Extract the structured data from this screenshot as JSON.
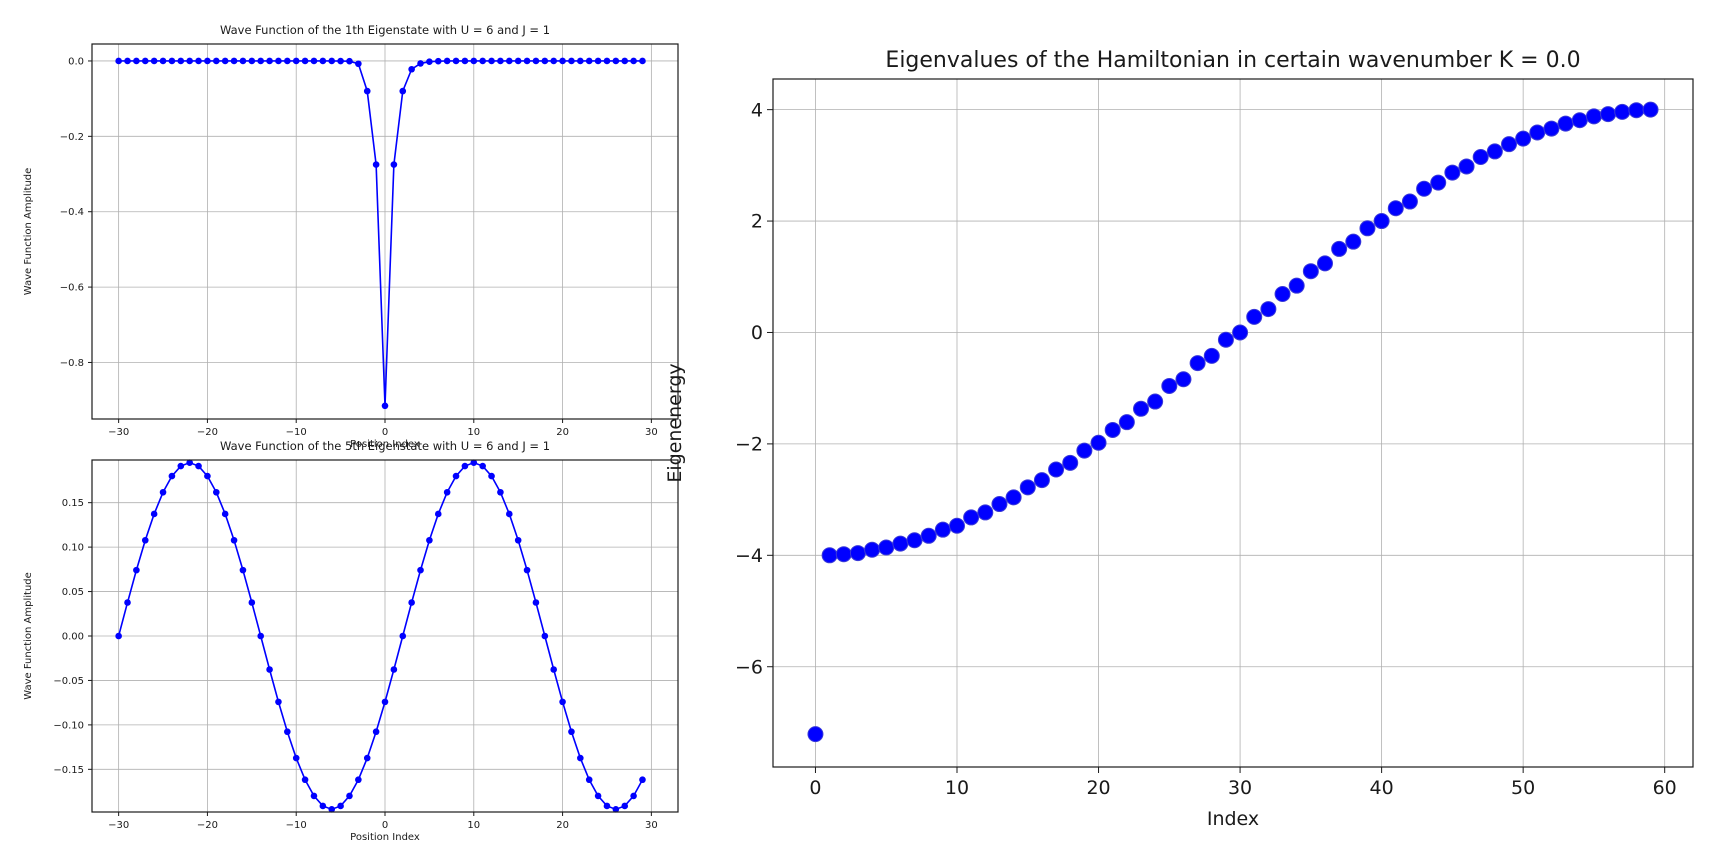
{
  "chart_data": [
    {
      "type": "line",
      "title": "Wave Function of the 1th Eigenstate with U = 6 and J = 1",
      "xlabel": "Position Index",
      "ylabel": "Wave Function Amplitude",
      "xlim": [
        -33,
        33
      ],
      "ylim": [
        -0.95,
        0.045
      ],
      "xticks": [
        -30,
        -20,
        -10,
        0,
        10,
        20,
        30
      ],
      "yticks": [
        0.0,
        -0.2,
        -0.4,
        -0.6,
        -0.8
      ],
      "ytick_labels": [
        "0.0",
        "−0.2",
        "−0.4",
        "−0.6",
        "−0.8"
      ],
      "xtick_labels": [
        "−30",
        "−20",
        "−10",
        "0",
        "10",
        "20",
        "30"
      ],
      "grid": true,
      "color": "#0000ff",
      "x": [
        -30,
        -29,
        -28,
        -27,
        -26,
        -25,
        -24,
        -23,
        -22,
        -21,
        -20,
        -19,
        -18,
        -17,
        -16,
        -15,
        -14,
        -13,
        -12,
        -11,
        -10,
        -9,
        -8,
        -7,
        -6,
        -5,
        -4,
        -3,
        -2,
        -1,
        0,
        1,
        2,
        3,
        4,
        5,
        6,
        7,
        8,
        9,
        10,
        11,
        12,
        13,
        14,
        15,
        16,
        17,
        18,
        19,
        20,
        21,
        22,
        23,
        24,
        25,
        26,
        27,
        28,
        29
      ],
      "y": [
        0,
        0,
        0,
        0,
        0,
        0,
        0,
        0,
        0,
        0,
        0,
        0,
        0,
        0,
        0,
        0,
        0,
        0,
        0,
        0,
        0,
        0,
        0,
        0,
        0,
        -0.0002,
        -0.0007,
        -0.0074,
        -0.08,
        -0.275,
        -0.915,
        -0.275,
        -0.08,
        -0.022,
        -0.0065,
        -0.0019,
        -0.0005,
        0,
        0,
        0,
        0,
        0,
        0,
        0,
        0,
        0,
        0,
        0,
        0,
        0,
        0,
        0,
        0,
        0,
        0,
        0,
        0,
        0,
        0,
        0
      ]
    },
    {
      "type": "line",
      "title": "Wave Function of the 5th Eigenstate with U = 6 and J = 1",
      "xlabel": "Position Index",
      "ylabel": "Wave Function Amplitude",
      "xlim": [
        -33,
        33
      ],
      "ylim": [
        -0.198,
        0.198
      ],
      "xticks": [
        -30,
        -20,
        -10,
        0,
        10,
        20,
        30
      ],
      "yticks": [
        0.15,
        0.1,
        0.05,
        0.0,
        -0.05,
        -0.1,
        -0.15
      ],
      "ytick_labels": [
        "0.15",
        "0.10",
        "0.05",
        "0.00",
        "−0.05",
        "−0.10",
        "−0.15"
      ],
      "xtick_labels": [
        "−30",
        "−20",
        "−10",
        "0",
        "10",
        "20",
        "30"
      ],
      "grid": true,
      "color": "#0000ff",
      "x": [
        -30,
        -29,
        -28,
        -27,
        -26,
        -25,
        -24,
        -23,
        -22,
        -21,
        -20,
        -19,
        -18,
        -17,
        -16,
        -15,
        -14,
        -13,
        -12,
        -11,
        -10,
        -9,
        -8,
        -7,
        -6,
        -5,
        -4,
        -3,
        -2,
        -1,
        0,
        1,
        2,
        3,
        4,
        5,
        6,
        7,
        8,
        9,
        10,
        11,
        12,
        13,
        14,
        15,
        16,
        17,
        18,
        19,
        20,
        21,
        22,
        23,
        24,
        25,
        26,
        27,
        28,
        29
      ],
      "y": [
        0,
        0.0377,
        0.0741,
        0.1077,
        0.1373,
        0.1617,
        0.1799,
        0.1912,
        0.195,
        0.1912,
        0.1799,
        0.1617,
        0.1373,
        0.1077,
        0.0741,
        0.0377,
        0,
        -0.0377,
        -0.0741,
        -0.1077,
        -0.1373,
        -0.1617,
        -0.1799,
        -0.1912,
        -0.195,
        -0.1912,
        -0.1799,
        -0.1617,
        -0.1373,
        -0.1077,
        -0.0741,
        -0.0377,
        0,
        0.0377,
        0.0741,
        0.1077,
        0.1373,
        0.1617,
        0.1799,
        0.1912,
        0.195,
        0.1912,
        0.1799,
        0.1617,
        0.1373,
        0.1077,
        0.0741,
        0.0377,
        0,
        -0.0377,
        -0.0741,
        -0.1077,
        -0.1373,
        -0.1617,
        -0.1799,
        -0.1912,
        -0.195,
        -0.1912,
        -0.1799,
        -0.1617
      ]
    },
    {
      "type": "scatter",
      "title": "Eigenvalues of the Hamiltonian in certain wavenumber K = 0.0",
      "xlabel": "Index",
      "ylabel": "Eigenenergy",
      "xlim": [
        -3,
        62
      ],
      "ylim": [
        -7.8,
        4.55
      ],
      "xticks": [
        0,
        10,
        20,
        30,
        40,
        50,
        60
      ],
      "yticks": [
        4,
        2,
        0,
        -2,
        -4,
        -6
      ],
      "ytick_labels": [
        "4",
        "2",
        "0",
        "−2",
        "−4",
        "−6"
      ],
      "xtick_labels": [
        "0",
        "10",
        "20",
        "30",
        "40",
        "50",
        "60"
      ],
      "grid": true,
      "color": "#0000ff",
      "x": [
        0,
        1,
        2,
        3,
        4,
        5,
        6,
        7,
        8,
        9,
        10,
        11,
        12,
        13,
        14,
        15,
        16,
        17,
        18,
        19,
        20,
        21,
        22,
        23,
        24,
        25,
        26,
        27,
        28,
        29,
        30,
        31,
        32,
        33,
        34,
        35,
        36,
        37,
        38,
        39,
        40,
        41,
        42,
        43,
        44,
        45,
        46,
        47,
        48,
        49,
        50,
        51,
        52,
        53,
        54,
        55,
        56,
        57,
        58,
        59
      ],
      "y": [
        -7.21,
        -4.0,
        -3.98,
        -3.96,
        -3.9,
        -3.86,
        -3.79,
        -3.73,
        -3.65,
        -3.54,
        -3.47,
        -3.32,
        -3.23,
        -3.08,
        -2.96,
        -2.78,
        -2.65,
        -2.46,
        -2.34,
        -2.12,
        -1.98,
        -1.75,
        -1.61,
        -1.37,
        -1.24,
        -0.96,
        -0.84,
        -0.55,
        -0.42,
        -0.13,
        0.0,
        0.28,
        0.42,
        0.69,
        0.84,
        1.1,
        1.24,
        1.5,
        1.63,
        1.87,
        2.0,
        2.23,
        2.35,
        2.58,
        2.69,
        2.87,
        2.98,
        3.15,
        3.25,
        3.38,
        3.48,
        3.59,
        3.66,
        3.75,
        3.81,
        3.88,
        3.92,
        3.96,
        3.99,
        4.0
      ]
    }
  ]
}
